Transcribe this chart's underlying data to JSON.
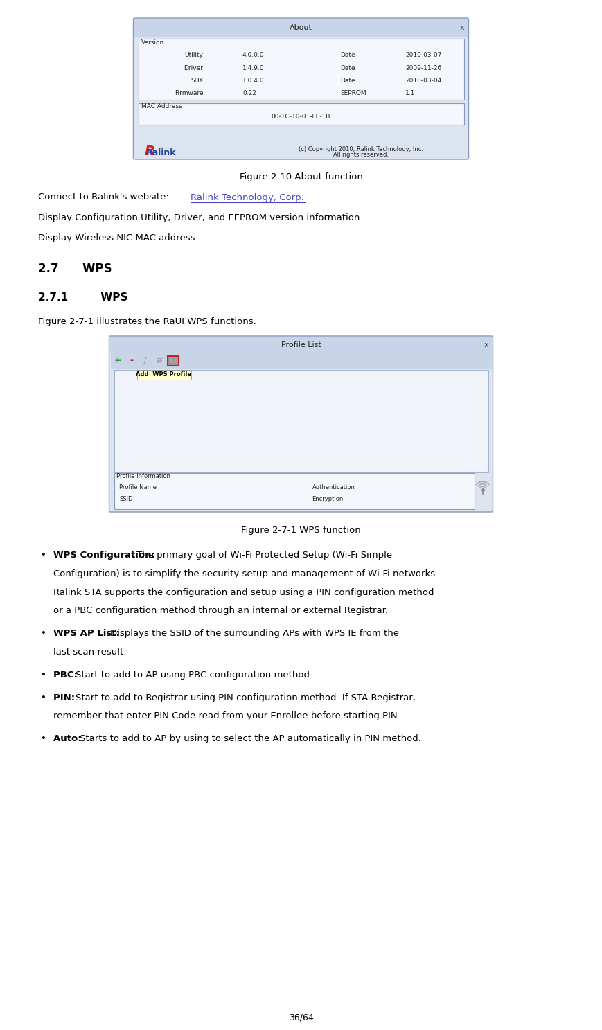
{
  "page_width": 8.69,
  "page_height": 14.87,
  "bg_color": "#ffffff",
  "text_color": "#000000",
  "link_color": "#4444cc",
  "figure_caption_color": "#000000",
  "fig1_caption": "Figure 2-10 About function",
  "fig2_caption": "Figure 2-7-1 WPS function",
  "connect_line": "Connect to Ralink's website: ",
  "link_text": "Ralink Technology, Corp",
  "line2": "Display Configuration Utility, Driver, and EEPROM version information.",
  "line3": "Display Wireless NIC MAC address.",
  "heading1": "2.7      WPS",
  "heading2": "2.7.1         WPS",
  "para1": "Figure 2-7-1 illustrates the RaUI WPS functions.",
  "bullet1_bold": "WPS Configuration: ",
  "bullet2_bold": "WPS AP List: ",
  "bullet3_bold": "PBC: ",
  "bullet4_bold": "PIN: ",
  "bullet5_bold": "Auto: ",
  "footer": "36/64",
  "about_dialog": {
    "title": "About",
    "title_bar_color": "#c8d4e8",
    "bg_color": "#dce4f0",
    "border_color": "#8899bb",
    "version_label": "Version",
    "rows": [
      [
        "Utility",
        "4.0.0.0",
        "Date",
        "2010-03-07"
      ],
      [
        "Driver",
        "1.4.9.0",
        "Date",
        "2009-11-26"
      ],
      [
        "SDK",
        "1.0.4.0",
        "Date",
        "2010-03-04"
      ],
      [
        "Firmware",
        "0.22",
        "EEPROM",
        "1.1"
      ]
    ],
    "mac_label": "MAC Address",
    "mac_value": "00-1C-10-01-FE-1B",
    "copyright": "(c) Copyright 2010, Ralink Technology, Inc.",
    "rights": "All rights reserved."
  },
  "wps_dialog": {
    "title": "Profile List",
    "title_bar_color": "#c8d4e8",
    "bg_color": "#dce4f0",
    "border_color": "#8899bb",
    "tooltip": "Add  WPS Profile",
    "profile_info_label": "Profile Information",
    "field1a": "Profile Name",
    "field1b": "Authentication",
    "field2a": "SSID",
    "field2b": "Encryption"
  }
}
